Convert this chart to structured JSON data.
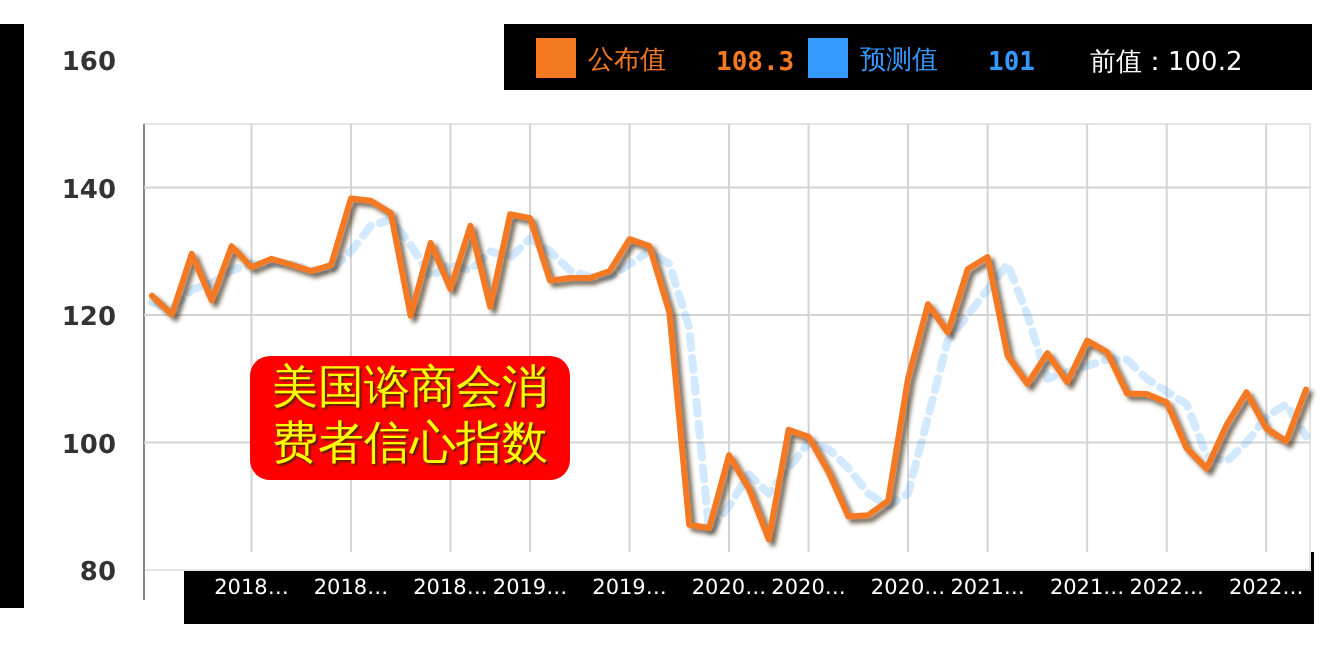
{
  "chart_data": {
    "type": "line",
    "title": "美国谘商会消费者信心指数",
    "categories": [
      null,
      null,
      null,
      null,
      null,
      "2018…",
      null,
      null,
      null,
      null,
      "2018…",
      null,
      null,
      null,
      null,
      "2018…",
      null,
      null,
      null,
      "2019…",
      null,
      null,
      null,
      null,
      "2019…",
      null,
      null,
      null,
      null,
      "2020…",
      null,
      null,
      null,
      "2020…",
      null,
      null,
      null,
      null,
      "2020…",
      null,
      null,
      null,
      "2021…",
      null,
      null,
      null,
      null,
      "2021…",
      null,
      null,
      null,
      "2022…",
      null,
      null,
      null,
      null,
      "2022…",
      null,
      null
    ],
    "series": [
      {
        "name": "公布值",
        "color": "#f47920",
        "line_style": "solid",
        "values": [
          123.0,
          120.1,
          129.6,
          122.3,
          130.8,
          127.5,
          128.8,
          127.9,
          126.9,
          127.8,
          138.3,
          137.9,
          136.0,
          119.9,
          131.3,
          124.1,
          134.0,
          121.3,
          135.8,
          135.2,
          125.4,
          125.8,
          125.8,
          126.9,
          131.9,
          130.8,
          120.4,
          87.1,
          86.6,
          98.0,
          92.8,
          84.8,
          102.0,
          100.9,
          95.4,
          88.4,
          88.6,
          90.9,
          110.0,
          121.7,
          117.3,
          127.2,
          129.1,
          113.6,
          109.2,
          114.0,
          109.5,
          116.0,
          114.2,
          107.7,
          107.6,
          106.3,
          99.1,
          95.9,
          102.7,
          107.9,
          102.2,
          100.2,
          108.3
        ]
      },
      {
        "name": "预测值",
        "color": "#3399ff",
        "line_style": "dashed",
        "values": [
          122,
          121,
          124,
          125,
          127,
          128,
          128,
          128,
          127,
          127,
          130,
          134,
          135,
          131,
          126,
          128,
          127,
          130,
          129,
          132,
          130,
          127,
          126,
          126,
          128,
          130,
          128,
          118,
          86,
          90,
          95,
          92,
          96,
          100,
          99,
          96,
          92,
          90,
          92,
          104,
          116,
          120,
          124,
          128,
          120,
          110,
          111,
          112,
          113,
          113,
          110,
          108,
          106,
          98,
          97,
          100,
          104,
          106,
          101
        ]
      }
    ],
    "annotations": [
      "108.3",
      "101",
      "前值：100.2"
    ],
    "ylim": [
      80,
      160
    ],
    "yticks": [
      80,
      100,
      120,
      140,
      160
    ],
    "grid": true,
    "legend": "top",
    "marker": "none"
  }
}
